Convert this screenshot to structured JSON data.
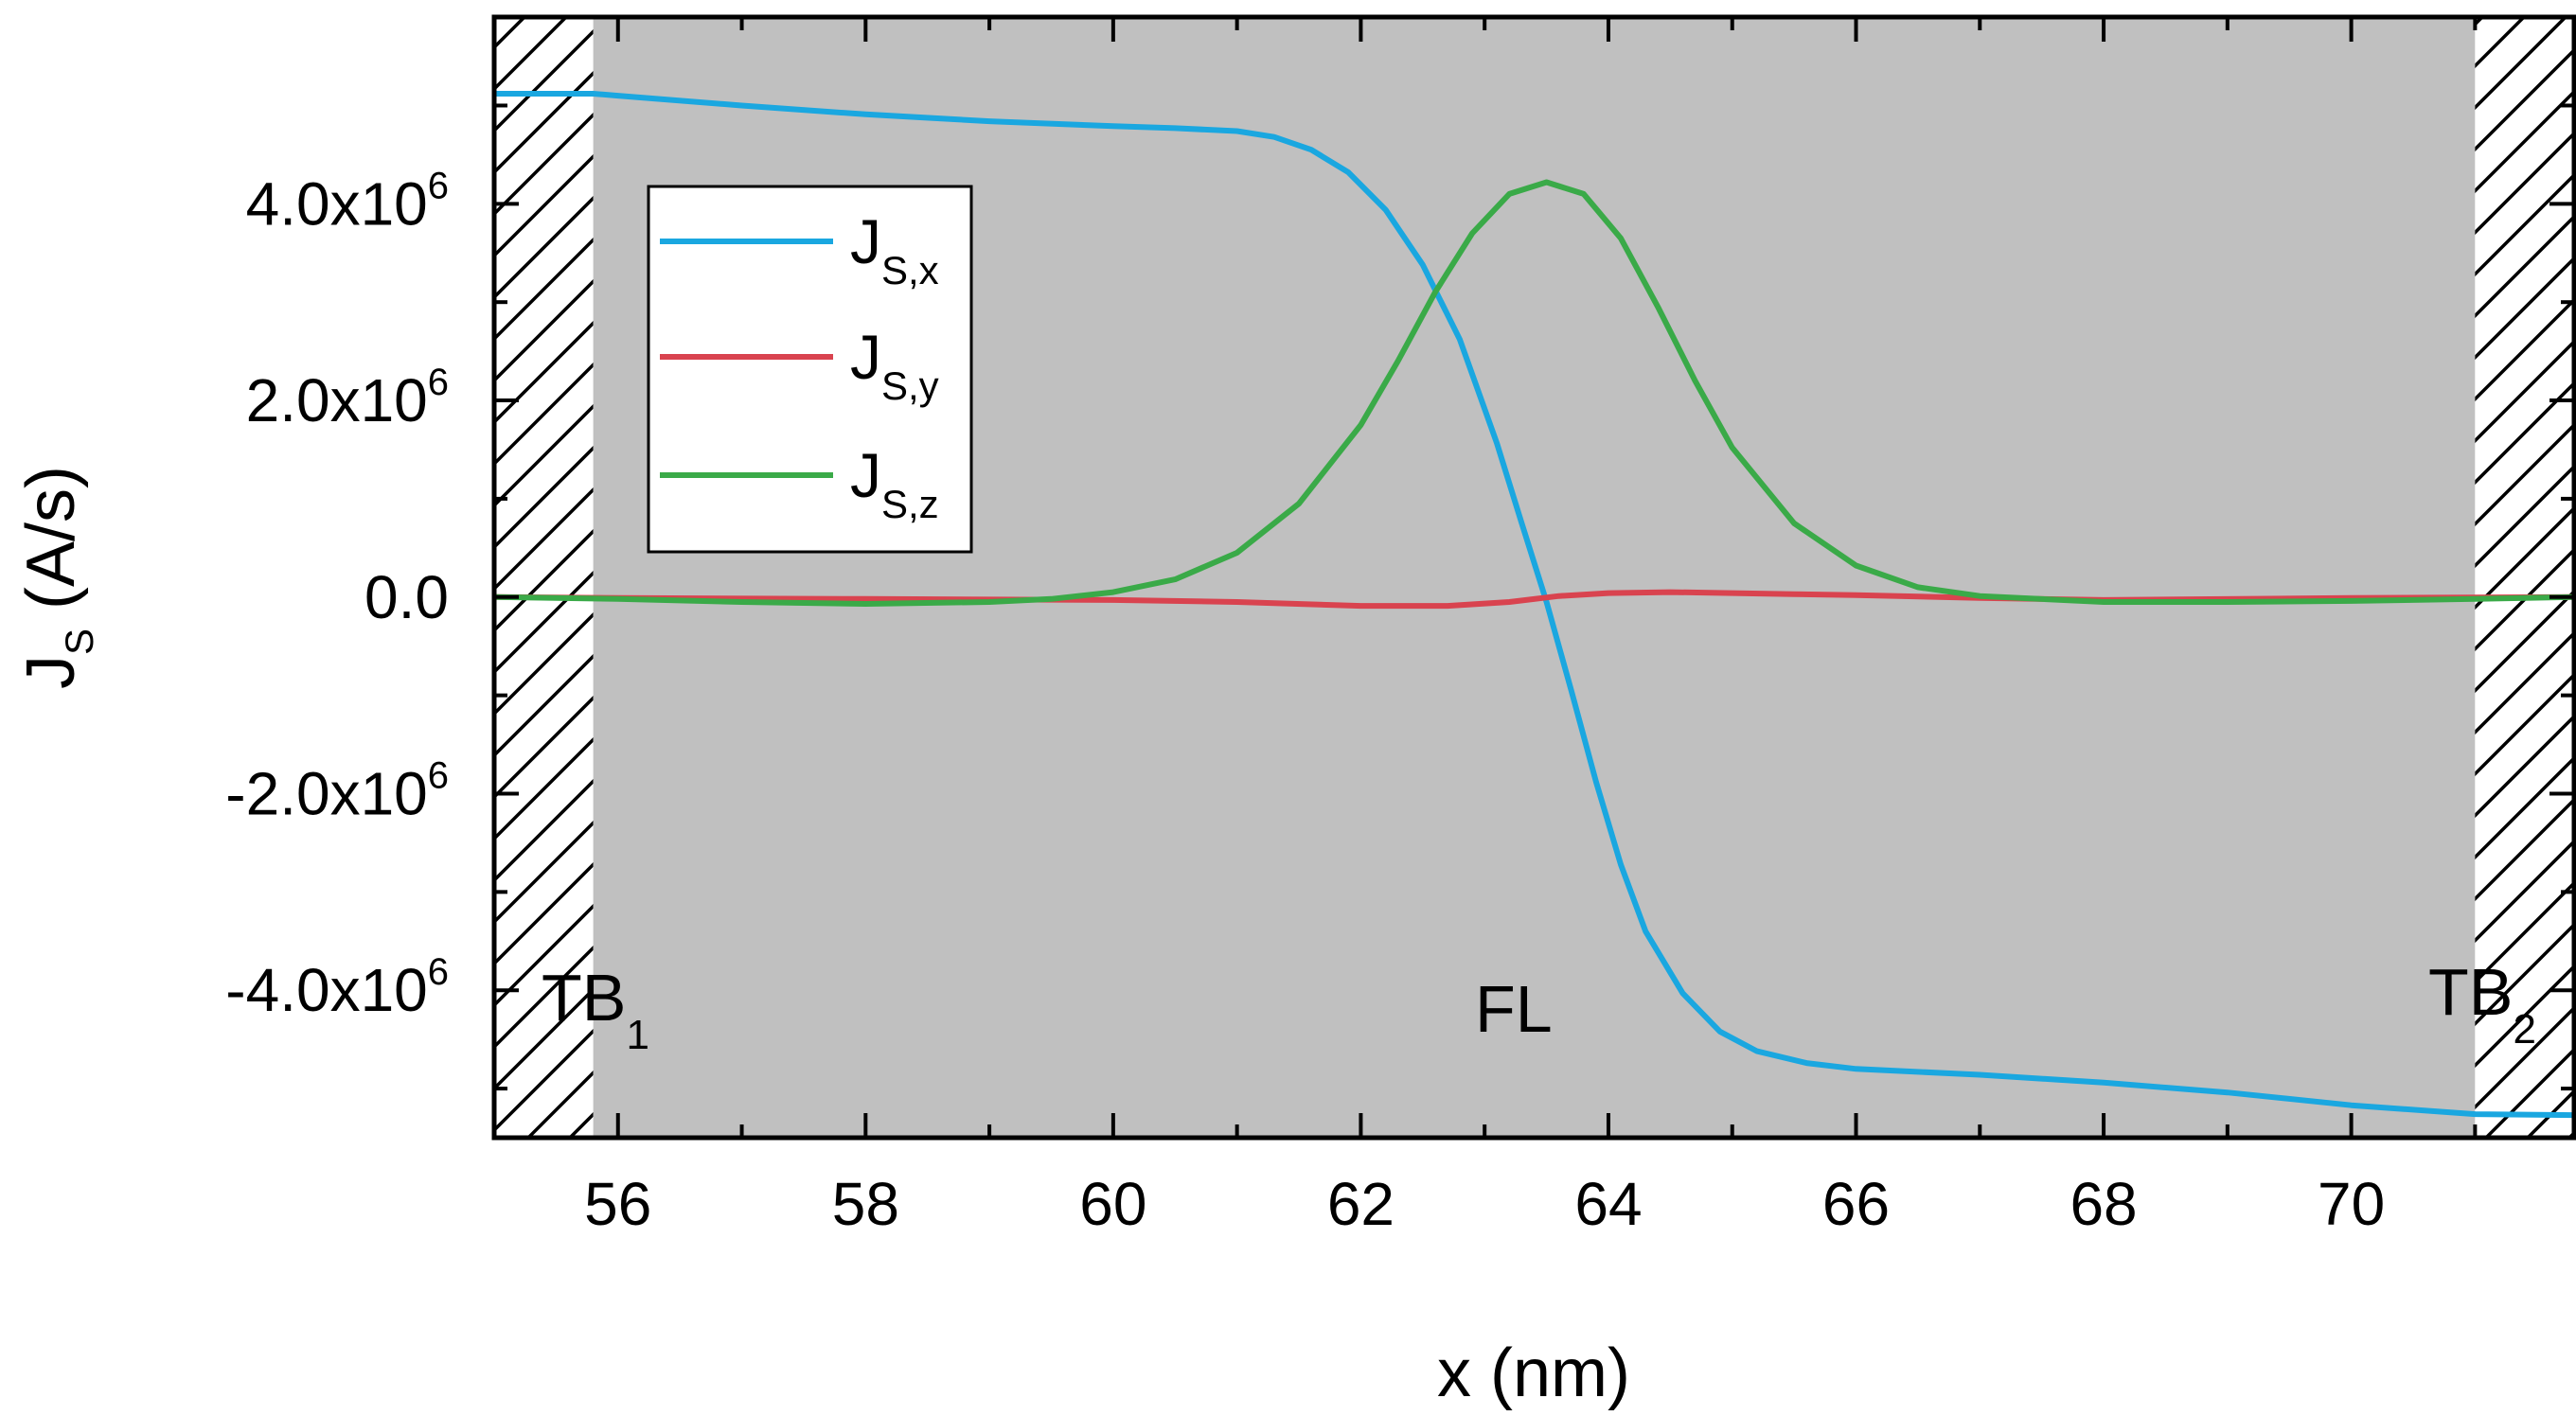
{
  "chart_data": {
    "type": "line",
    "title": "",
    "xlabel": "x (nm)",
    "ylabel": {
      "main": "J",
      "sub": "S",
      "unit": " (A/s)"
    },
    "xlim": [
      55,
      71.8
    ],
    "ylim": [
      -5500000.0,
      5900000.0
    ],
    "xticks": [
      56,
      58,
      60,
      62,
      64,
      66,
      68,
      70
    ],
    "xtick_labels": [
      "56",
      "58",
      "60",
      "62",
      "64",
      "66",
      "68",
      "70"
    ],
    "yticks": [
      {
        "value": 4000000.0,
        "mantissa": "4.0x10",
        "exp": "6"
      },
      {
        "value": 2000000.0,
        "mantissa": "2.0x10",
        "exp": "6"
      },
      {
        "value": 0,
        "mantissa": "0.0",
        "exp": ""
      },
      {
        "value": -2000000.0,
        "mantissa": "-2.0x10",
        "exp": "6"
      },
      {
        "value": -4000000.0,
        "mantissa": "-4.0x10",
        "exp": "6"
      }
    ],
    "regions": [
      {
        "name": "TB",
        "sub": "1",
        "x_range": [
          55,
          55.8
        ],
        "style": "hatched"
      },
      {
        "name": "FL",
        "sub": "",
        "x_range": [
          55.8,
          71.0
        ],
        "style": "shaded",
        "fill": "#c0c0c0"
      },
      {
        "name": "TB",
        "sub": "2",
        "x_range": [
          71.0,
          71.8
        ],
        "style": "hatched"
      }
    ],
    "series": [
      {
        "name": "J_S,x",
        "label": {
          "main": "J",
          "sub": "S,x"
        },
        "color": "#1aa7e0",
        "x": [
          55,
          55.8,
          56,
          57,
          58,
          59,
          60,
          60.5,
          61,
          61.3,
          61.6,
          61.9,
          62.2,
          62.5,
          62.8,
          63.1,
          63.3,
          63.5,
          63.7,
          63.9,
          64.1,
          64.3,
          64.6,
          64.9,
          65.2,
          65.6,
          66,
          67,
          68,
          69,
          70,
          71,
          71.8
        ],
        "y": [
          5120000.0,
          5120000.0,
          5100000.0,
          5000000.0,
          4910000.0,
          4840000.0,
          4790000.0,
          4770000.0,
          4740000.0,
          4680000.0,
          4550000.0,
          4320000.0,
          3940000.0,
          3380000.0,
          2620000.0,
          1560000.0,
          750000.0,
          -50000.0,
          -950000.0,
          -1880000.0,
          -2720000.0,
          -3400000.0,
          -4030000.0,
          -4420000.0,
          -4620000.0,
          -4740000.0,
          -4800000.0,
          -4860000.0,
          -4940000.0,
          -5040000.0,
          -5170000.0,
          -5260000.0,
          -5270000.0
        ]
      },
      {
        "name": "J_S,y",
        "label": {
          "main": "J",
          "sub": "S,y"
        },
        "color": "#d9434f",
        "x": [
          55,
          56,
          58,
          60,
          61,
          62,
          62.7,
          63.2,
          63.6,
          64.0,
          64.5,
          65.0,
          65.5,
          66,
          67,
          68,
          70,
          71.8
        ],
        "y": [
          0,
          -10000.0,
          -20000.0,
          -30000.0,
          -50000.0,
          -90000.0,
          -90000.0,
          -50000.0,
          10000.0,
          40000.0,
          50000.0,
          40000.0,
          30000.0,
          20000.0,
          -10000.0,
          -30000.0,
          -10000.0,
          0
        ]
      },
      {
        "name": "J_S,z",
        "label": {
          "main": "J",
          "sub": "S,z"
        },
        "color": "#3aaa48",
        "x": [
          55,
          56,
          57,
          58,
          59,
          59.5,
          60,
          60.5,
          61,
          61.5,
          62,
          62.3,
          62.6,
          62.9,
          63.2,
          63.5,
          63.8,
          64.1,
          64.4,
          64.7,
          65,
          65.5,
          66,
          66.5,
          67,
          68,
          69,
          70,
          71,
          71.8
        ],
        "y": [
          0,
          -20000.0,
          -50000.0,
          -70000.0,
          -50000.0,
          -20000.0,
          50000.0,
          180000.0,
          450000.0,
          950000.0,
          1750000.0,
          2400000.0,
          3100000.0,
          3700000.0,
          4100000.0,
          4220000.0,
          4100000.0,
          3650000.0,
          2950000.0,
          2200000.0,
          1520000.0,
          750000.0,
          320000.0,
          100000.0,
          10000.0,
          -50000.0,
          -50000.0,
          -40000.0,
          -20000.0,
          0
        ]
      }
    ],
    "legend": {
      "position": "top-left",
      "frame": true
    }
  }
}
